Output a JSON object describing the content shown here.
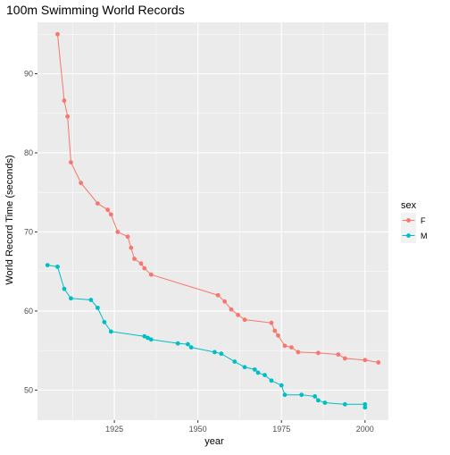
{
  "chart_data": {
    "type": "line",
    "title": "100m Swimming World Records",
    "xlabel": "year",
    "ylabel": "World Record Time (seconds)",
    "xlim": [
      1902,
      2007
    ],
    "ylim": [
      46.2,
      96.5
    ],
    "x_ticks": [
      1925,
      1950,
      1975,
      2000
    ],
    "y_ticks": [
      50,
      60,
      70,
      80,
      90
    ],
    "grid": true,
    "legend": {
      "title": "sex",
      "position": "right"
    },
    "series": [
      {
        "name": "F",
        "color": "#F8766D",
        "points": [
          [
            1908,
            95.0
          ],
          [
            1910,
            86.6
          ],
          [
            1911,
            84.6
          ],
          [
            1912,
            78.8
          ],
          [
            1915,
            76.2
          ],
          [
            1920,
            73.6
          ],
          [
            1923,
            72.8
          ],
          [
            1924,
            72.2
          ],
          [
            1926,
            70.0
          ],
          [
            1929,
            69.4
          ],
          [
            1930,
            68.0
          ],
          [
            1931,
            66.6
          ],
          [
            1933,
            66.0
          ],
          [
            1934,
            65.4
          ],
          [
            1936,
            64.6
          ],
          [
            1956,
            62.0
          ],
          [
            1958,
            61.2
          ],
          [
            1960,
            60.2
          ],
          [
            1962,
            59.5
          ],
          [
            1964,
            58.9
          ],
          [
            1972,
            58.5
          ],
          [
            1973,
            57.5
          ],
          [
            1974,
            56.9
          ],
          [
            1976,
            55.6
          ],
          [
            1978,
            55.4
          ],
          [
            1980,
            54.8
          ],
          [
            1986,
            54.7
          ],
          [
            1992,
            54.5
          ],
          [
            1994,
            54.0
          ],
          [
            2000,
            53.8
          ],
          [
            2004,
            53.5
          ]
        ]
      },
      {
        "name": "M",
        "color": "#00BFC4",
        "points": [
          [
            1905,
            65.8
          ],
          [
            1908,
            65.6
          ],
          [
            1910,
            62.8
          ],
          [
            1912,
            61.6
          ],
          [
            1918,
            61.4
          ],
          [
            1920,
            60.4
          ],
          [
            1922,
            58.6
          ],
          [
            1924,
            57.4
          ],
          [
            1934,
            56.8
          ],
          [
            1935,
            56.6
          ],
          [
            1936,
            56.4
          ],
          [
            1944,
            55.9
          ],
          [
            1947,
            55.8
          ],
          [
            1948,
            55.4
          ],
          [
            1955,
            54.8
          ],
          [
            1957,
            54.6
          ],
          [
            1961,
            53.6
          ],
          [
            1964,
            52.9
          ],
          [
            1967,
            52.6
          ],
          [
            1968,
            52.2
          ],
          [
            1970,
            51.9
          ],
          [
            1972,
            51.2
          ],
          [
            1975,
            50.6
          ],
          [
            1976,
            49.4
          ],
          [
            1981,
            49.4
          ],
          [
            1985,
            49.2
          ],
          [
            1986,
            48.7
          ],
          [
            1988,
            48.4
          ],
          [
            1994,
            48.2
          ],
          [
            2000,
            48.2
          ],
          [
            2000,
            47.8
          ]
        ]
      }
    ]
  }
}
